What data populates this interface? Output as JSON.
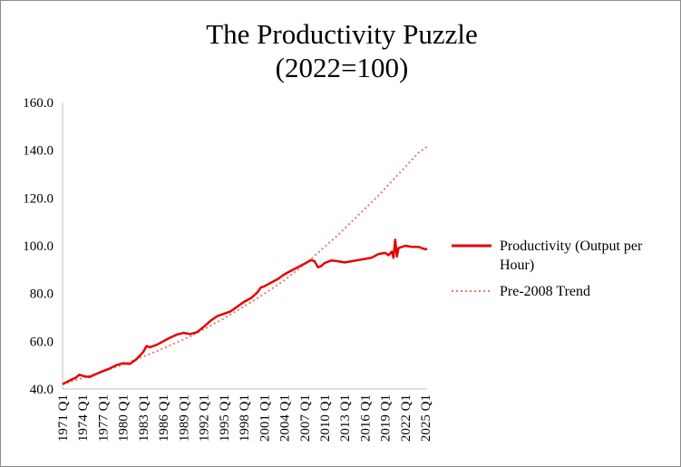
{
  "chart_data": {
    "type": "line",
    "title_lines": [
      "The Productivity Puzzle",
      "(2022=100)"
    ],
    "xlabel": "",
    "ylabel": "",
    "ylim": [
      40,
      160
    ],
    "y_ticks": [
      "40.0",
      "60.0",
      "80.0",
      "100.0",
      "120.0",
      "140.0",
      "160.0"
    ],
    "x_ticks": [
      "1971 Q1",
      "1974 Q1",
      "1977 Q1",
      "1980 Q1",
      "1983 Q1",
      "1986 Q1",
      "1989 Q1",
      "1992 Q1",
      "1995 Q1",
      "1998 Q1",
      "2001 Q1",
      "2004 Q1",
      "2007 Q1",
      "2010 Q1",
      "2013 Q1",
      "2016 Q1",
      "2019 Q1",
      "2022 Q1",
      "2025 Q1"
    ],
    "x_start": "1971 Q1",
    "x_end": "2025 Q2",
    "grid": false,
    "legend_position": "right",
    "series": [
      {
        "name": "Productivity (Output per Hour)",
        "color": "#e60000",
        "style": "solid",
        "x": [
          1971.0,
          1972.0,
          1973.0,
          1973.5,
          1974.0,
          1975.0,
          1976.0,
          1977.0,
          1978.0,
          1979.0,
          1980.0,
          1981.0,
          1982.0,
          1983.0,
          1983.5,
          1984.0,
          1985.0,
          1986.0,
          1987.0,
          1988.0,
          1989.0,
          1990.0,
          1991.0,
          1992.0,
          1993.0,
          1994.0,
          1995.0,
          1996.0,
          1997.0,
          1998.0,
          1999.0,
          2000.0,
          2000.5,
          2001.0,
          2002.0,
          2003.0,
          2004.0,
          2005.0,
          2006.0,
          2007.0,
          2008.0,
          2008.5,
          2009.0,
          2009.5,
          2010.0,
          2011.0,
          2012.0,
          2013.0,
          2014.0,
          2015.0,
          2016.0,
          2017.0,
          2018.0,
          2019.0,
          2019.5,
          2020.0,
          2020.25,
          2020.5,
          2020.75,
          2021.0,
          2022.0,
          2023.0,
          2024.0,
          2025.0,
          2025.25
        ],
        "values": [
          42.0,
          43.5,
          44.8,
          46.0,
          45.5,
          45.0,
          46.3,
          47.5,
          48.6,
          50.0,
          50.8,
          50.5,
          52.5,
          55.5,
          58.0,
          57.5,
          58.5,
          60.0,
          61.5,
          62.8,
          63.5,
          63.0,
          63.8,
          66.0,
          68.5,
          70.5,
          71.5,
          72.5,
          74.5,
          76.5,
          78.0,
          80.5,
          82.5,
          83.0,
          84.5,
          86.0,
          88.0,
          89.5,
          91.0,
          92.5,
          94.0,
          93.5,
          91.0,
          91.5,
          92.8,
          93.8,
          93.5,
          93.0,
          93.5,
          94.0,
          94.5,
          95.0,
          96.5,
          97.0,
          96.0,
          97.5,
          95.0,
          102.5,
          95.5,
          99.0,
          100.0,
          99.5,
          99.5,
          98.5,
          98.8
        ]
      },
      {
        "name": "Pre-2008 Trend",
        "color": "#f0756b",
        "style": "dotted",
        "x": [
          1971.0,
          1975.0,
          1980.0,
          1985.0,
          1990.0,
          1995.0,
          2000.0,
          2004.0,
          2008.0,
          2010.0,
          2012.0,
          2014.0,
          2016.0,
          2018.0,
          2020.0,
          2022.0,
          2024.0,
          2025.25
        ],
        "values": [
          42.0,
          45.5,
          50.2,
          55.8,
          62.0,
          69.5,
          78.0,
          85.5,
          94.5,
          99.5,
          104.5,
          110.0,
          115.5,
          121.0,
          127.0,
          133.0,
          139.0,
          141.5
        ]
      }
    ]
  }
}
